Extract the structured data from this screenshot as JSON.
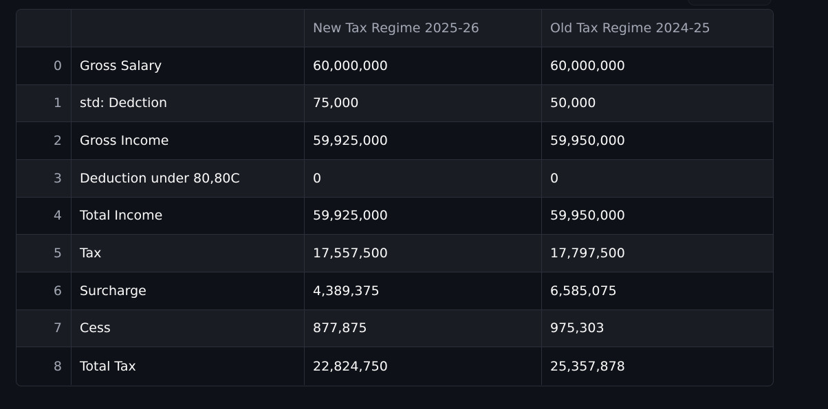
{
  "table": {
    "columns": [
      "",
      "",
      "New Tax Regime 2025-26",
      "Old Tax Regime 2024-25"
    ],
    "rows": [
      {
        "index": "0",
        "label": "Gross Salary",
        "new": "60,000,000",
        "old": "60,000,000"
      },
      {
        "index": "1",
        "label": "std: Dedction",
        "new": "75,000",
        "old": "50,000"
      },
      {
        "index": "2",
        "label": "Gross Income",
        "new": "59,925,000",
        "old": "59,950,000"
      },
      {
        "index": "3",
        "label": "Deduction under 80,80C",
        "new": "0",
        "old": "0"
      },
      {
        "index": "4",
        "label": "Total Income",
        "new": "59,925,000",
        "old": "59,950,000"
      },
      {
        "index": "5",
        "label": "Tax",
        "new": "17,557,500",
        "old": "17,797,500"
      },
      {
        "index": "6",
        "label": "Surcharge",
        "new": "4,389,375",
        "old": "6,585,075"
      },
      {
        "index": "7",
        "label": "Cess",
        "new": "877,875",
        "old": "975,303"
      },
      {
        "index": "8",
        "label": "Total Tax",
        "new": "22,824,750",
        "old": "25,357,878"
      }
    ]
  },
  "colors": {
    "background": "#0e1117",
    "header_bg": "#1a1c24",
    "border": "#2b2f39",
    "text": "#fafafa",
    "muted_text": "#a3a8b4"
  }
}
